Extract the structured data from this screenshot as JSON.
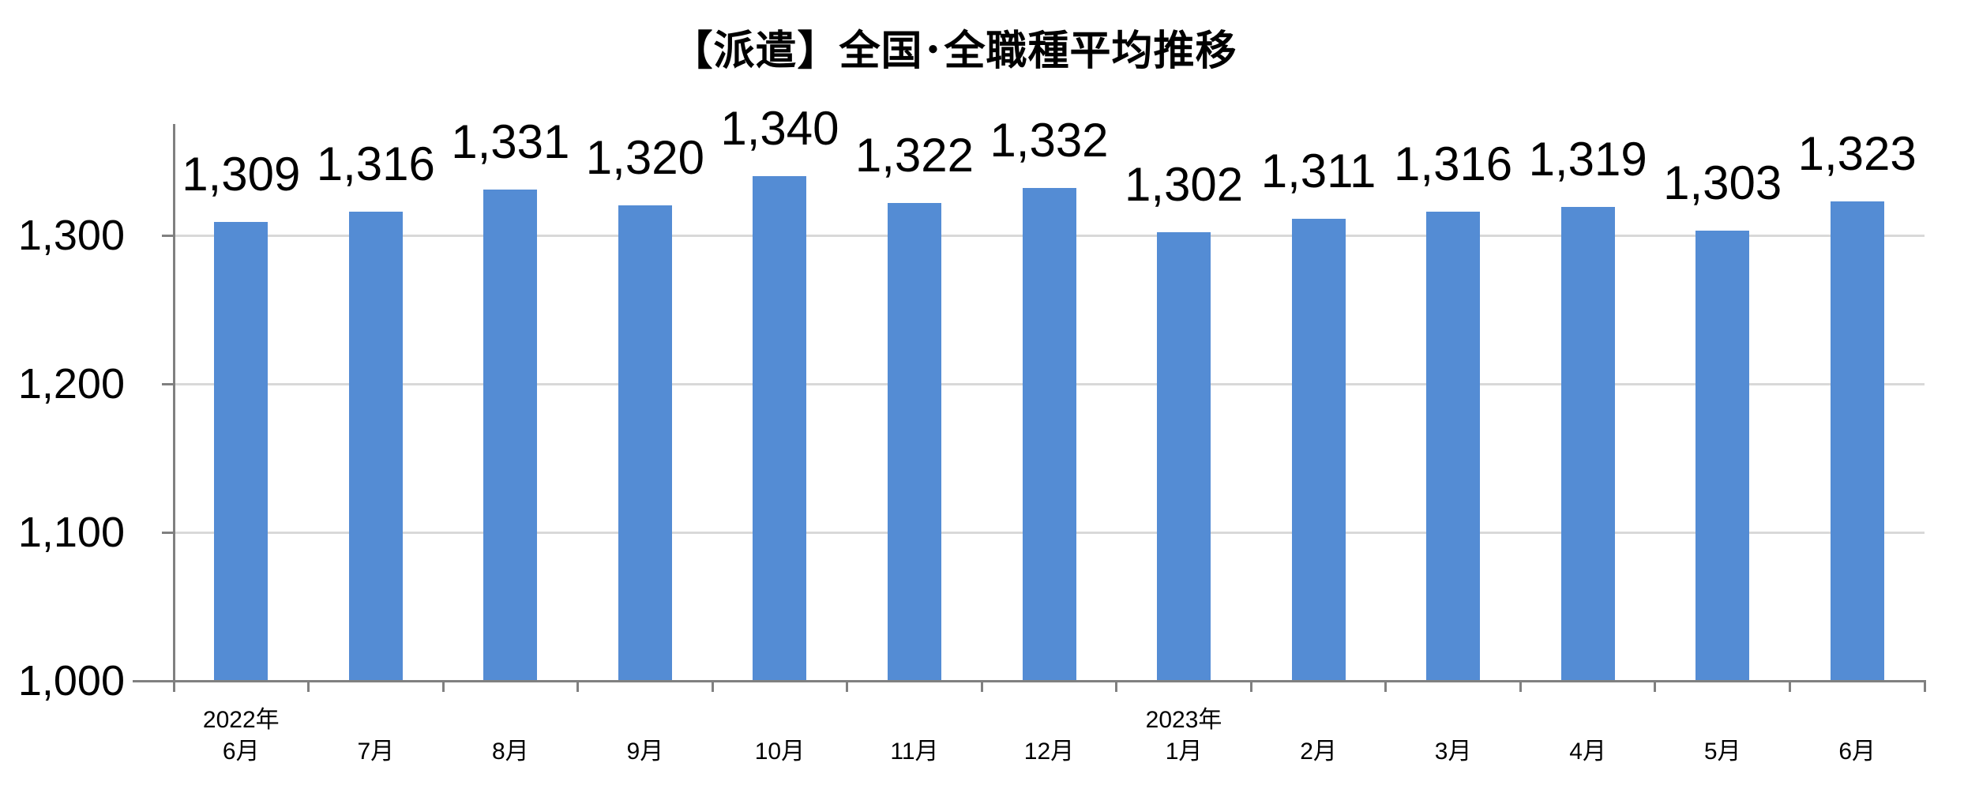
{
  "title": "【派遣】全国･全職種平均推移",
  "chart_data": {
    "type": "bar",
    "title": "【派遣】全国･全職種平均推移",
    "xlabel": "",
    "ylabel": "",
    "categories": [
      "6月",
      "7月",
      "8月",
      "9月",
      "10月",
      "11月",
      "12月",
      "1月",
      "2月",
      "3月",
      "4月",
      "5月",
      "6月"
    ],
    "year_markers": [
      {
        "index": 0,
        "label": "2022年"
      },
      {
        "index": 7,
        "label": "2023年"
      }
    ],
    "values": [
      1309,
      1316,
      1331,
      1320,
      1340,
      1322,
      1332,
      1302,
      1311,
      1316,
      1319,
      1303,
      1323
    ],
    "value_labels": [
      "1,309",
      "1,316",
      "1,331",
      "1,320",
      "1,340",
      "1,322",
      "1,332",
      "1,302",
      "1,311",
      "1,316",
      "1,319",
      "1,303",
      "1,323"
    ],
    "y_ticks": [
      {
        "value": 1000,
        "label": "1,000"
      },
      {
        "value": 1100,
        "label": "1,100"
      },
      {
        "value": 1200,
        "label": "1,200"
      },
      {
        "value": 1300,
        "label": "1,300"
      }
    ],
    "ylim": [
      1000,
      1375
    ],
    "grid": true,
    "legend": false,
    "colors": {
      "bar": "#548CD4",
      "axis": "#808080",
      "gridline": "#D9D9D9",
      "text": "#000000"
    }
  }
}
